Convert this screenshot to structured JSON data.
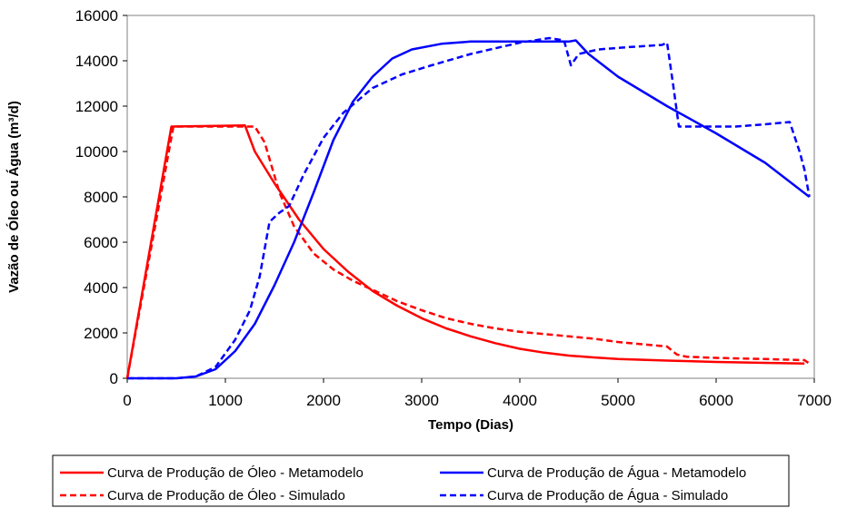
{
  "chart_data": {
    "type": "line",
    "title": "",
    "xlabel": "Tempo (Dias)",
    "ylabel": "Vazão de Óleo ou Água (m³/d)",
    "xlim": [
      0,
      7000
    ],
    "ylim": [
      0,
      16000
    ],
    "xticks": [
      0,
      1000,
      2000,
      3000,
      4000,
      5000,
      6000,
      7000
    ],
    "yticks": [
      0,
      2000,
      4000,
      6000,
      8000,
      10000,
      12000,
      14000,
      16000
    ],
    "grid": false,
    "legend_position": "bottom",
    "series": [
      {
        "name": "Curva de Produção de Óleo - Metamodelo",
        "color": "#ff0000",
        "style": "solid",
        "points": [
          [
            0,
            0
          ],
          [
            450,
            11100
          ],
          [
            1200,
            11150
          ],
          [
            1300,
            10000
          ],
          [
            1500,
            8600
          ],
          [
            1750,
            7000
          ],
          [
            2000,
            5700
          ],
          [
            2250,
            4700
          ],
          [
            2500,
            3850
          ],
          [
            2750,
            3200
          ],
          [
            3000,
            2650
          ],
          [
            3250,
            2200
          ],
          [
            3500,
            1850
          ],
          [
            3750,
            1550
          ],
          [
            4000,
            1300
          ],
          [
            4250,
            1130
          ],
          [
            4500,
            1000
          ],
          [
            4750,
            920
          ],
          [
            5000,
            850
          ],
          [
            5500,
            780
          ],
          [
            6000,
            720
          ],
          [
            6500,
            680
          ],
          [
            6900,
            650
          ]
        ]
      },
      {
        "name": "Curva de Produção de Óleo - Simulado",
        "color": "#ff0000",
        "style": "dashed",
        "points": [
          [
            0,
            0
          ],
          [
            470,
            11100
          ],
          [
            1300,
            11100
          ],
          [
            1400,
            10400
          ],
          [
            1550,
            8200
          ],
          [
            1700,
            6700
          ],
          [
            1900,
            5500
          ],
          [
            2100,
            4800
          ],
          [
            2300,
            4300
          ],
          [
            2500,
            3900
          ],
          [
            2750,
            3400
          ],
          [
            3000,
            3000
          ],
          [
            3250,
            2650
          ],
          [
            3500,
            2400
          ],
          [
            3750,
            2200
          ],
          [
            4000,
            2050
          ],
          [
            4250,
            1950
          ],
          [
            4500,
            1850
          ],
          [
            4750,
            1750
          ],
          [
            5000,
            1600
          ],
          [
            5250,
            1500
          ],
          [
            5500,
            1400
          ],
          [
            5600,
            1050
          ],
          [
            5700,
            950
          ],
          [
            6000,
            900
          ],
          [
            6500,
            850
          ],
          [
            6900,
            800
          ],
          [
            6950,
            650
          ]
        ]
      },
      {
        "name": "Curva de Produção de Água - Metamodelo",
        "color": "#0000ff",
        "style": "solid",
        "points": [
          [
            0,
            0
          ],
          [
            500,
            0
          ],
          [
            700,
            80
          ],
          [
            900,
            400
          ],
          [
            1100,
            1200
          ],
          [
            1300,
            2400
          ],
          [
            1500,
            4100
          ],
          [
            1700,
            6000
          ],
          [
            1900,
            8200
          ],
          [
            2100,
            10500
          ],
          [
            2300,
            12200
          ],
          [
            2500,
            13300
          ],
          [
            2700,
            14100
          ],
          [
            2900,
            14500
          ],
          [
            3200,
            14750
          ],
          [
            3500,
            14850
          ],
          [
            4000,
            14850
          ],
          [
            4500,
            14850
          ],
          [
            4570,
            14900
          ],
          [
            4700,
            14300
          ],
          [
            5000,
            13300
          ],
          [
            5500,
            12000
          ],
          [
            6000,
            10800
          ],
          [
            6500,
            9500
          ],
          [
            6950,
            8000
          ]
        ]
      },
      {
        "name": "Curva de Produção de Água - Simulado",
        "color": "#0000ff",
        "style": "dashed",
        "points": [
          [
            0,
            0
          ],
          [
            500,
            0
          ],
          [
            700,
            80
          ],
          [
            900,
            500
          ],
          [
            1100,
            1700
          ],
          [
            1250,
            3000
          ],
          [
            1350,
            4500
          ],
          [
            1450,
            6900
          ],
          [
            1550,
            7300
          ],
          [
            1650,
            7600
          ],
          [
            1800,
            9000
          ],
          [
            2000,
            10600
          ],
          [
            2200,
            11700
          ],
          [
            2500,
            12800
          ],
          [
            2800,
            13400
          ],
          [
            3100,
            13800
          ],
          [
            3500,
            14300
          ],
          [
            4000,
            14800
          ],
          [
            4300,
            15000
          ],
          [
            4450,
            14900
          ],
          [
            4520,
            13800
          ],
          [
            4600,
            14300
          ],
          [
            4800,
            14500
          ],
          [
            5100,
            14600
          ],
          [
            5450,
            14700
          ],
          [
            5500,
            14800
          ],
          [
            5560,
            13000
          ],
          [
            5620,
            11100
          ],
          [
            5800,
            11100
          ],
          [
            6200,
            11100
          ],
          [
            6500,
            11200
          ],
          [
            6750,
            11300
          ],
          [
            6850,
            10000
          ],
          [
            6900,
            9200
          ],
          [
            6950,
            8000
          ]
        ]
      }
    ]
  }
}
